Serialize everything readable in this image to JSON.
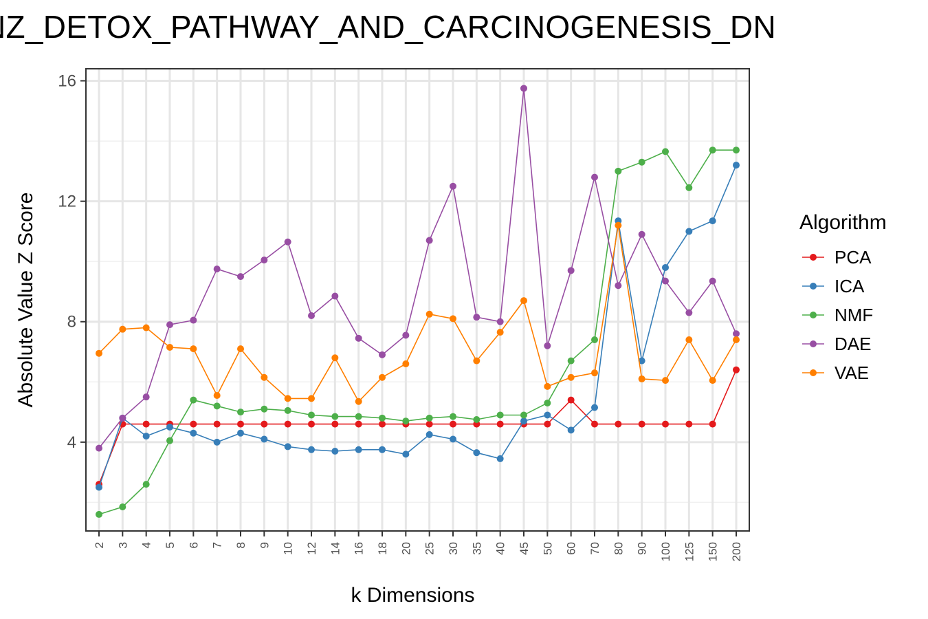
{
  "chart_data": {
    "type": "line",
    "title": "NZ_DETOX_PATHWAY_AND_CARCINOGENESIS_DN",
    "xlabel": "k Dimensions",
    "ylabel": "Absolute Value Z Score",
    "x_categories": [
      "2",
      "3",
      "4",
      "5",
      "6",
      "7",
      "8",
      "9",
      "10",
      "12",
      "14",
      "16",
      "18",
      "20",
      "25",
      "30",
      "35",
      "40",
      "45",
      "50",
      "60",
      "70",
      "80",
      "90",
      "100",
      "125",
      "150",
      "200"
    ],
    "y_ticks": [
      4,
      8,
      12,
      16
    ],
    "ylim": [
      1.05,
      16.4
    ],
    "grid": true,
    "legend_title": "Algorithm",
    "legend_position": "right",
    "series": [
      {
        "name": "PCA",
        "color": "#E41A1C",
        "values": [
          2.6,
          4.6,
          4.6,
          4.6,
          4.6,
          4.6,
          4.6,
          4.6,
          4.6,
          4.6,
          4.6,
          4.6,
          4.6,
          4.6,
          4.6,
          4.6,
          4.6,
          4.6,
          4.6,
          4.6,
          5.4,
          4.6,
          4.6,
          4.6,
          4.6,
          4.6,
          4.6,
          6.4
        ]
      },
      {
        "name": "ICA",
        "color": "#377EB8",
        "values": [
          2.5,
          4.8,
          4.2,
          4.5,
          4.3,
          4.0,
          4.3,
          4.1,
          3.85,
          3.75,
          3.7,
          3.75,
          3.75,
          3.6,
          4.25,
          4.1,
          3.65,
          3.45,
          4.7,
          4.9,
          4.4,
          5.15,
          11.35,
          6.7,
          9.8,
          11.0,
          11.35,
          13.2
        ]
      },
      {
        "name": "NMF",
        "color": "#4DAF4A",
        "values": [
          1.6,
          1.85,
          2.6,
          4.05,
          5.4,
          5.2,
          5.0,
          5.1,
          5.05,
          4.9,
          4.85,
          4.85,
          4.8,
          4.7,
          4.8,
          4.85,
          4.75,
          4.9,
          4.9,
          5.3,
          6.7,
          7.4,
          13.0,
          13.3,
          13.65,
          12.45,
          13.7,
          13.7
        ]
      },
      {
        "name": "DAE",
        "color": "#984EA3",
        "values": [
          3.8,
          4.8,
          5.5,
          7.9,
          8.05,
          9.75,
          9.5,
          10.05,
          10.65,
          8.2,
          8.85,
          7.45,
          6.9,
          7.55,
          10.7,
          12.5,
          8.15,
          8.0,
          15.75,
          7.2,
          9.7,
          12.8,
          9.2,
          10.9,
          9.35,
          8.3,
          9.35,
          7.6
        ]
      },
      {
        "name": "VAE",
        "color": "#FF7F00",
        "values": [
          6.95,
          7.75,
          7.8,
          7.15,
          7.1,
          5.55,
          7.1,
          6.15,
          5.45,
          5.45,
          6.8,
          5.35,
          6.15,
          6.6,
          8.25,
          8.1,
          6.7,
          7.65,
          8.7,
          5.85,
          6.15,
          6.3,
          11.2,
          6.1,
          6.05,
          7.4,
          6.05,
          7.4
        ]
      }
    ]
  }
}
